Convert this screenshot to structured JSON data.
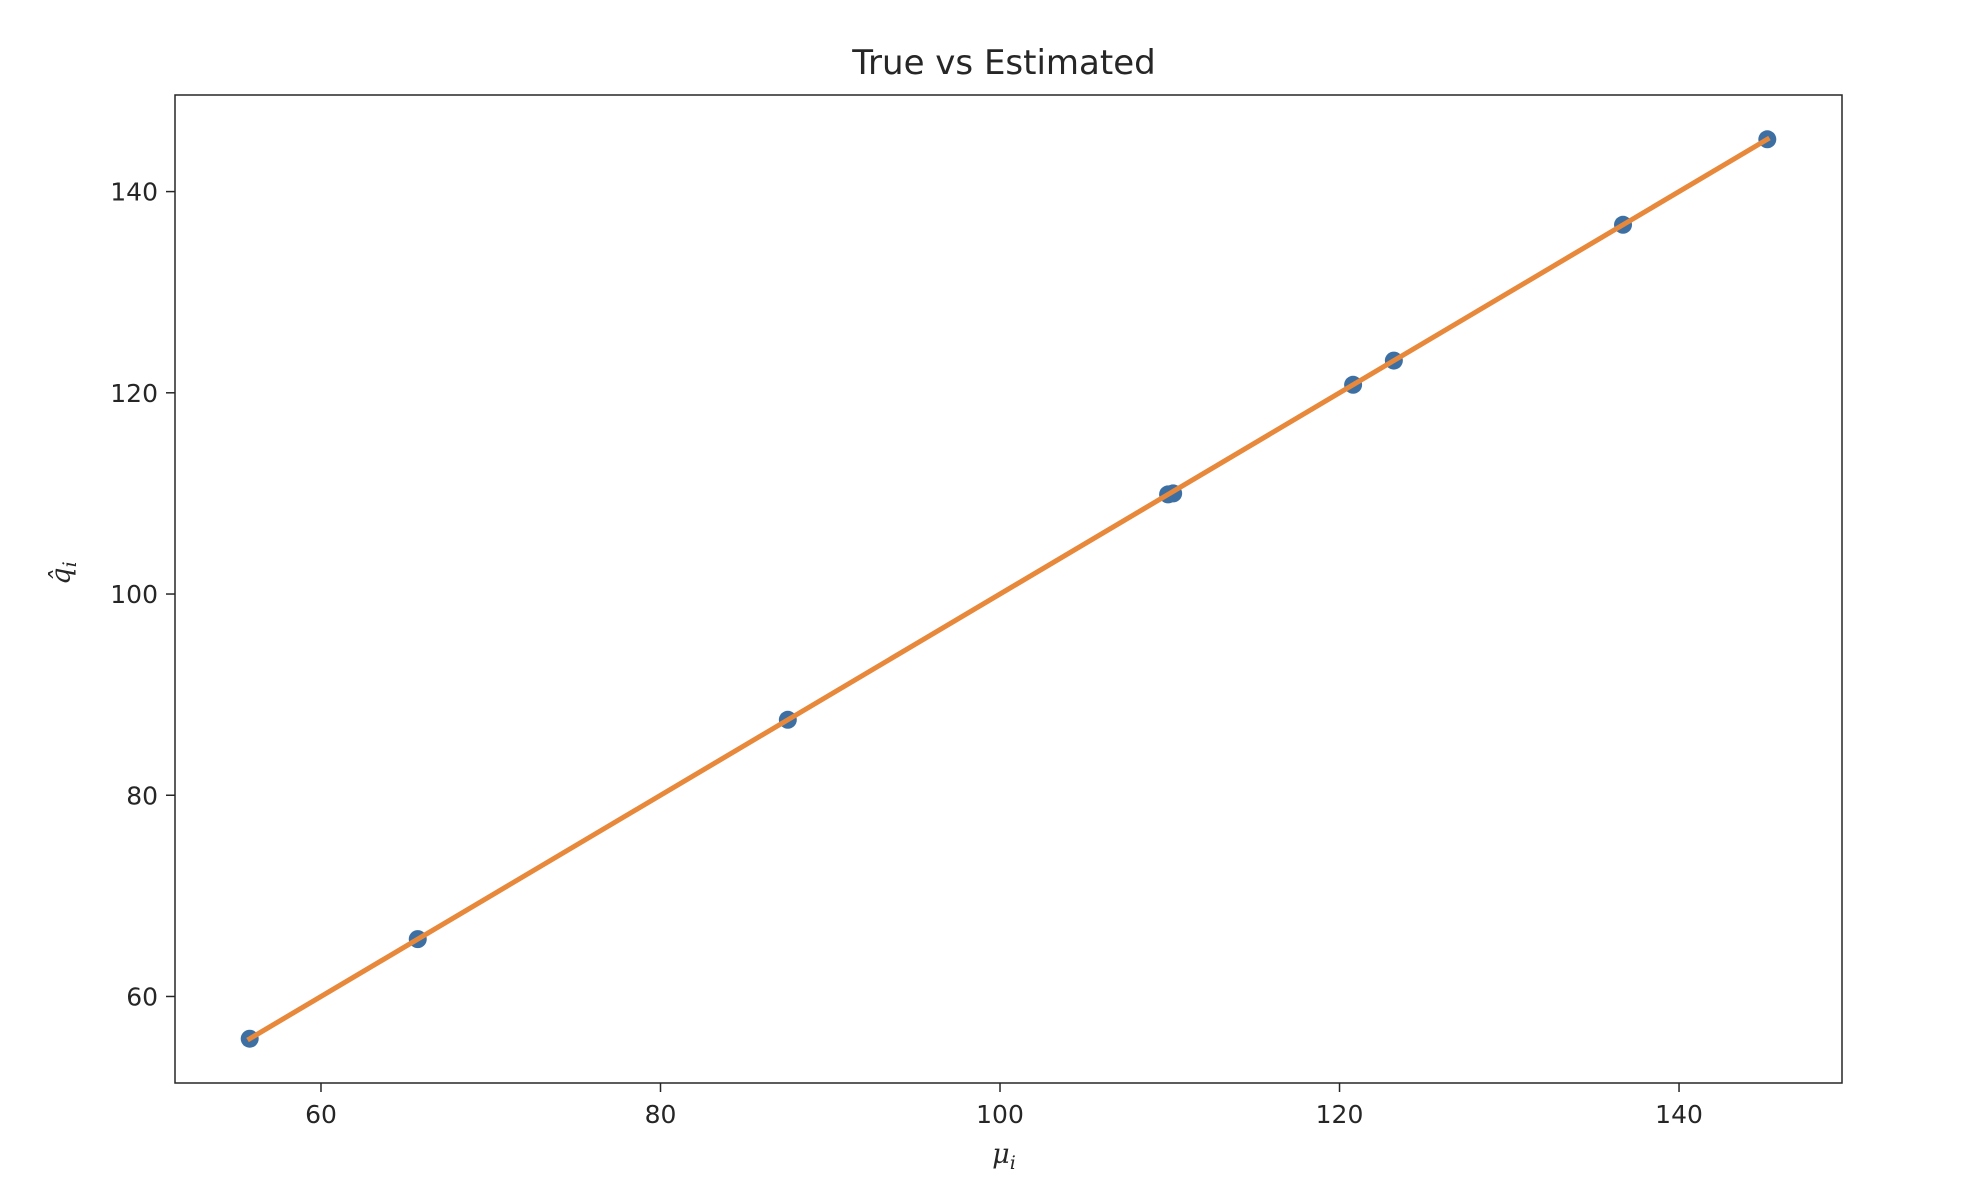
{
  "chart_data": {
    "type": "scatter",
    "title": "True vs Estimated",
    "xlabel": "μ",
    "xlabel_sub": "i",
    "ylabel": "q̂",
    "ylabel_sub": "i",
    "xlim": [
      51.4,
      149.6
    ],
    "ylim": [
      51.4,
      149.6
    ],
    "xticks": [
      60,
      80,
      100,
      120,
      140
    ],
    "yticks": [
      60,
      80,
      100,
      120,
      140
    ],
    "grid": false,
    "series": [
      {
        "kind": "scatter",
        "color": "#3d6fa3",
        "points": [
          [
            55.8,
            55.8
          ],
          [
            65.7,
            65.7
          ],
          [
            87.5,
            87.5
          ],
          [
            109.9,
            109.9
          ],
          [
            110.2,
            110.0
          ],
          [
            120.8,
            120.8
          ],
          [
            123.2,
            123.2
          ],
          [
            136.7,
            136.7
          ],
          [
            145.2,
            145.2
          ]
        ]
      },
      {
        "kind": "line",
        "color": "#e8883a",
        "points": [
          [
            55.8,
            55.8
          ],
          [
            145.2,
            145.2
          ]
        ]
      }
    ]
  }
}
